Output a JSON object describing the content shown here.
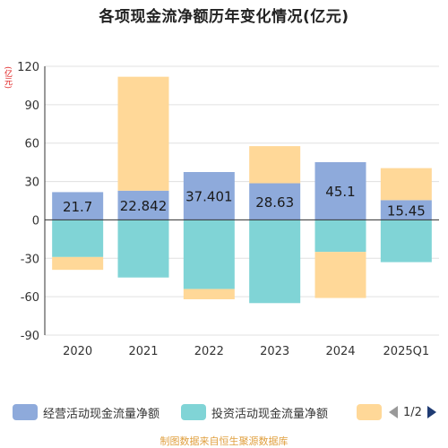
{
  "title": "各项现金流净额历年变化情况(亿元)",
  "unit": "(亿元)",
  "source": "制图数据来自恒生聚源数据库",
  "legend": {
    "items": [
      {
        "label": "经营活动现金流量净额",
        "color": "#8eaadb"
      },
      {
        "label": "投资活动现金流量净额",
        "color": "#80d4d6"
      },
      {
        "label": "",
        "color": "#ffd898"
      }
    ],
    "page": "1/2"
  },
  "chart_data": {
    "type": "bar",
    "stacked": true,
    "categories": [
      "2020",
      "2021",
      "2022",
      "2023",
      "2024",
      "2025Q1"
    ],
    "ylim": [
      -90,
      120
    ],
    "yticks": [
      -90,
      -60,
      -30,
      0,
      30,
      60,
      90,
      120
    ],
    "series": [
      {
        "name": "经营活动现金流量净额",
        "color": "#8eaadb",
        "values": [
          21.7,
          22.842,
          37.401,
          28.63,
          45.1,
          15.45
        ],
        "labels": [
          "21.7",
          "22.842",
          "37.401",
          "28.63",
          "45.1",
          "15.45"
        ]
      },
      {
        "name": "投资活动现金流量净额",
        "color": "#80d4d6",
        "values": [
          -29,
          -45,
          -54,
          -65,
          -25,
          -33
        ]
      },
      {
        "name": "",
        "color": "#ffd898",
        "values": [
          -10,
          89,
          -8,
          29,
          -36,
          25
        ]
      }
    ]
  }
}
